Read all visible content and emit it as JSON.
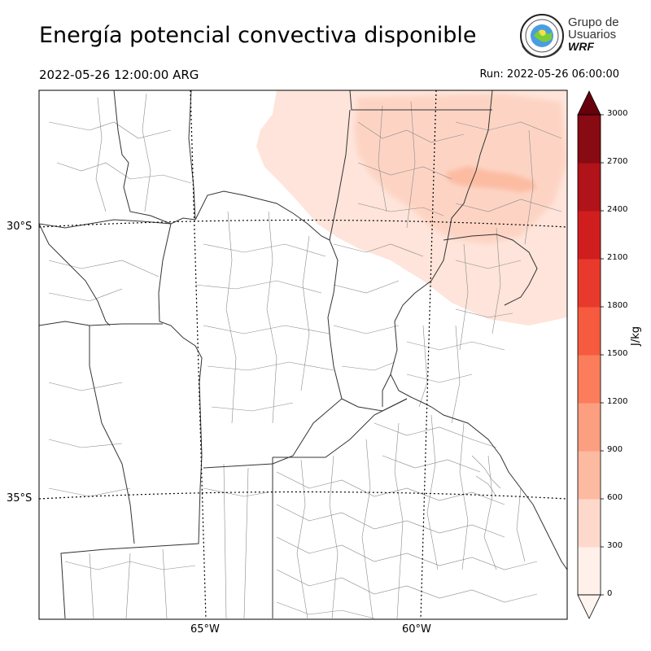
{
  "header": {
    "title": "Energía potencial convectiva disponible",
    "valid_time": "2022-05-26 12:00:00 ARG",
    "run_time": "Run: 2022-05-26 06:00:00"
  },
  "logo": {
    "line1": "Grupo de",
    "line2": "Usuarios",
    "line3": "WRF"
  },
  "map": {
    "lat_labels": [
      "30°S",
      "35°S"
    ],
    "lon_labels": [
      "65°W",
      "60°W"
    ]
  },
  "colorbar": {
    "unit_label": "J/kg",
    "ticks": [
      "0",
      "300",
      "600",
      "900",
      "1200",
      "1500",
      "1800",
      "2100",
      "2400",
      "2700",
      "3000"
    ],
    "colors": [
      "#fff0ea",
      "#fed9cb",
      "#fcbaa0",
      "#fc9e80",
      "#fb7d5b",
      "#f65a3f",
      "#e83a2c",
      "#d01e1f",
      "#b01319",
      "#880a12"
    ],
    "extend_color": "#67000d"
  },
  "cape_field": {
    "levels_present_jkg": [
      0,
      300,
      600
    ]
  }
}
